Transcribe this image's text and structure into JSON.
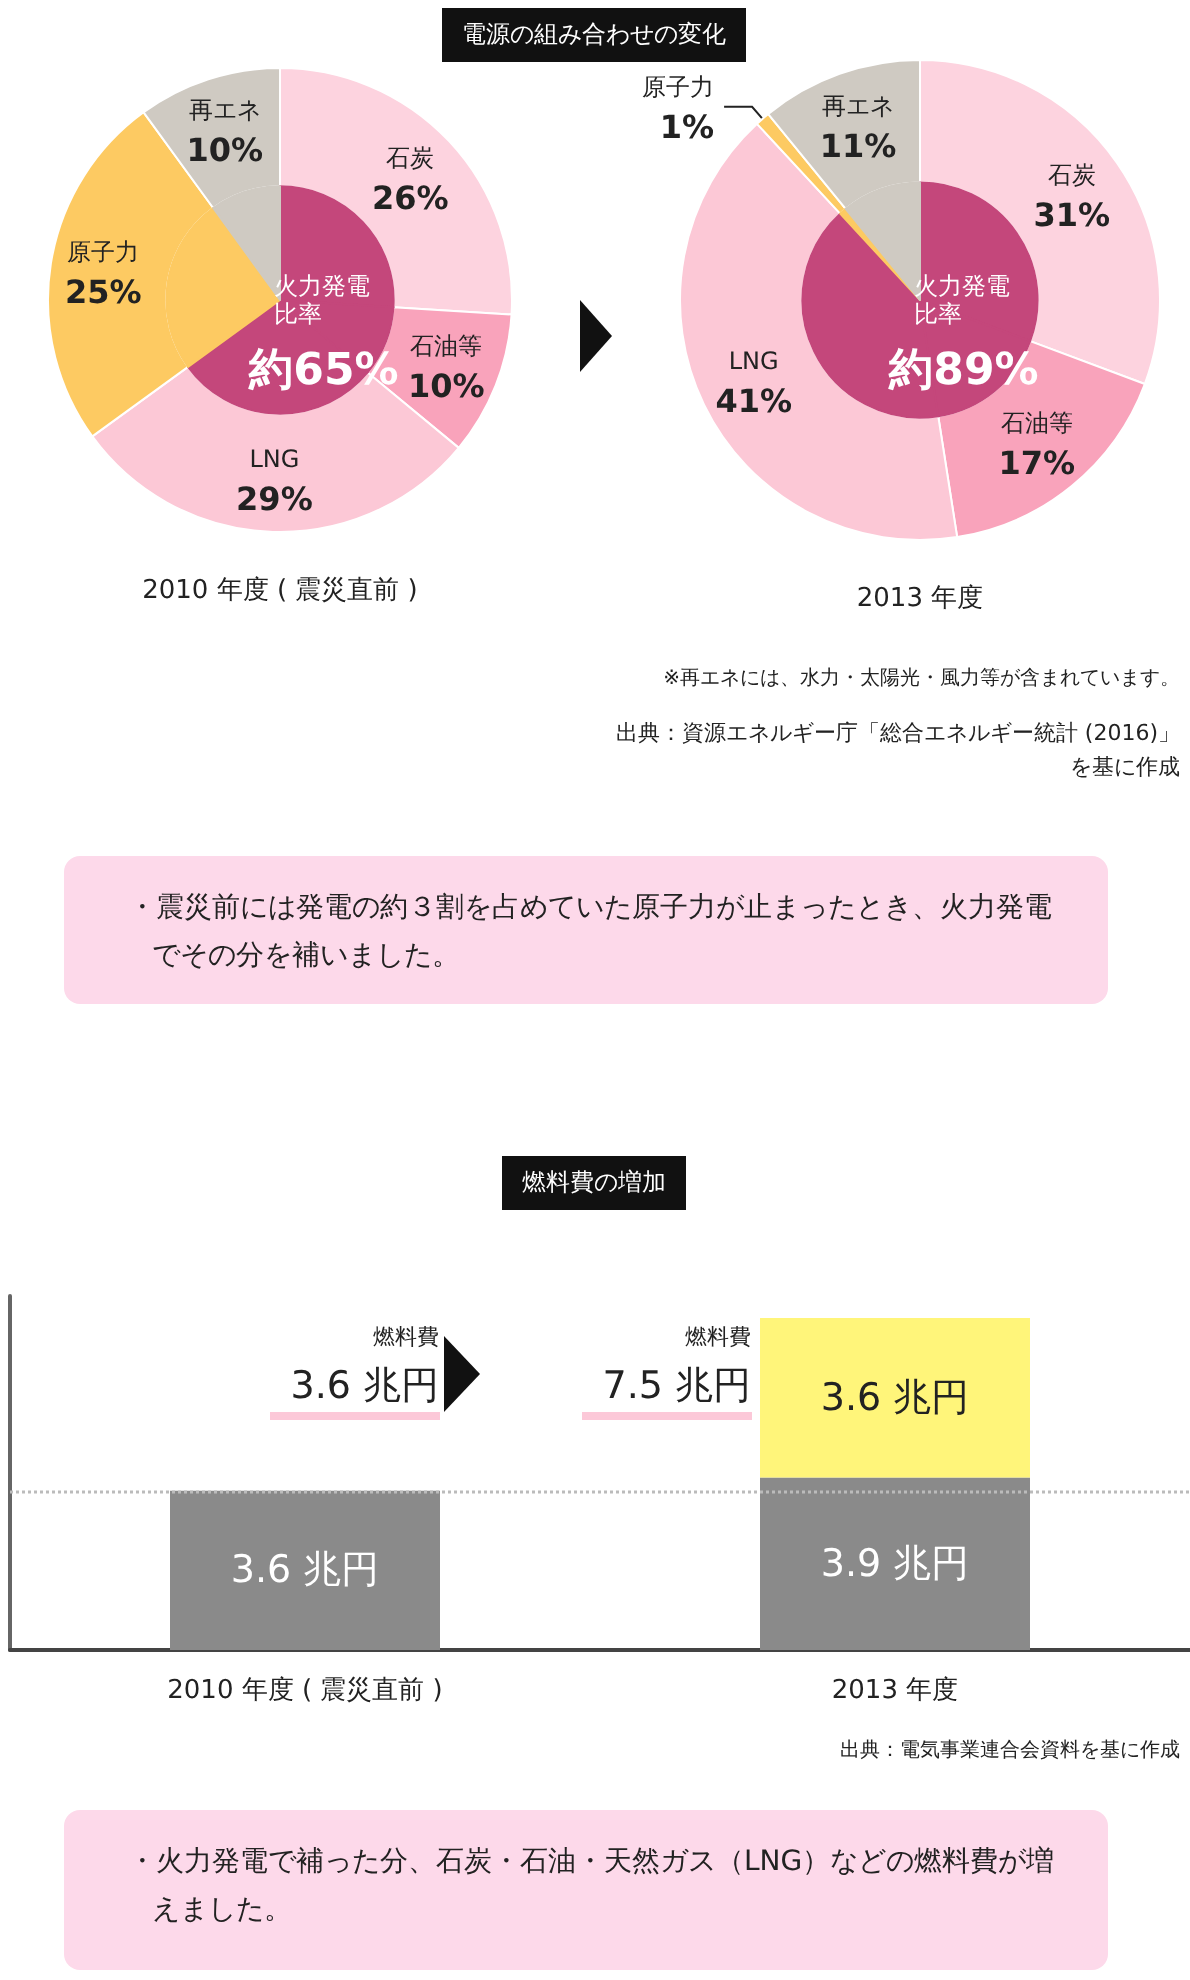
{
  "chart_data": [
    {
      "type": "pie",
      "title": "電源の組み合わせの変化",
      "xlabel": "2010 年度 ( 震災直前 )",
      "categories": [
        "石炭",
        "石油等",
        "LNG",
        "原子力",
        "再エネ"
      ],
      "series": [
        {
          "values": [
            26,
            10,
            29,
            25,
            10
          ],
          "colors": [
            "#fdd3df",
            "#f9a3bb",
            "#fcc8d6",
            "#fdca62",
            "#cfcac2"
          ],
          "value_labels": [
            "26%",
            "10%",
            "29%",
            "25%",
            "10%"
          ]
        },
        {
          "values": [
            26,
            10,
            29,
            25,
            10
          ],
          "colors": [
            "#c4477b",
            "#c4477b",
            "#c4477b",
            "#fdca62",
            "#cfcac2"
          ]
        }
      ],
      "annotations": [
        "火力発電比率",
        "約65%"
      ]
    },
    {
      "type": "pie",
      "xlabel": "2013 年度",
      "categories": [
        "石炭",
        "石油等",
        "LNG",
        "原子力",
        "再エネ"
      ],
      "series": [
        {
          "values": [
            31,
            17,
            41,
            1,
            11
          ],
          "colors": [
            "#fdd3df",
            "#f9a3bb",
            "#fcc8d6",
            "#fdca62",
            "#cfcac2"
          ],
          "value_labels": [
            "31%",
            "17%",
            "41%",
            "1%",
            "11%"
          ]
        },
        {
          "values": [
            31,
            17,
            41,
            1,
            11
          ],
          "colors": [
            "#c4477b",
            "#c4477b",
            "#c4477b",
            "#fdca62",
            "#cfcac2"
          ]
        }
      ],
      "annotations": [
        "火力発電比率",
        "約89%",
        "※再エネには、水力・太陽光・風力等が含まれています。",
        "出典：資源エネルギー庁「総合エネルギー統計 (2016)」を基に作成",
        "・震災前には発電の約３割を占めていた原子力が止まったとき、火力発電でその分を補いました。"
      ]
    },
    {
      "type": "bar",
      "title": "燃料費の増加",
      "categories": [
        "2010 年度 ( 震災直前 )",
        "2013 年度"
      ],
      "stacked": true,
      "tick_labels": "x",
      "series": [
        {
          "color": "#8a8a8a",
          "values": [
            3.6,
            3.9
          ],
          "value_labels": [
            "3.6 兆円",
            "3.9 兆円"
          ]
        },
        {
          "color": "#fff57a",
          "values": [
            null,
            3.6
          ],
          "value_labels": [
            null,
            "3.6 兆円"
          ]
        }
      ],
      "totals": [
        "燃料費\n3.6 兆円",
        "燃料費\n7.5 兆円"
      ],
      "ref_lines": [
        {
          "axis": "y",
          "value": 3.6,
          "line_style": "dotted",
          "color": "#bbbbbb"
        }
      ],
      "annotations": [
        "出典：電気事業連合会資料を基に作成",
        "・火力発電で補った分、石炭・石油・天然ガス（LNG）などの燃料費が増えました。"
      ]
    }
  ]
}
